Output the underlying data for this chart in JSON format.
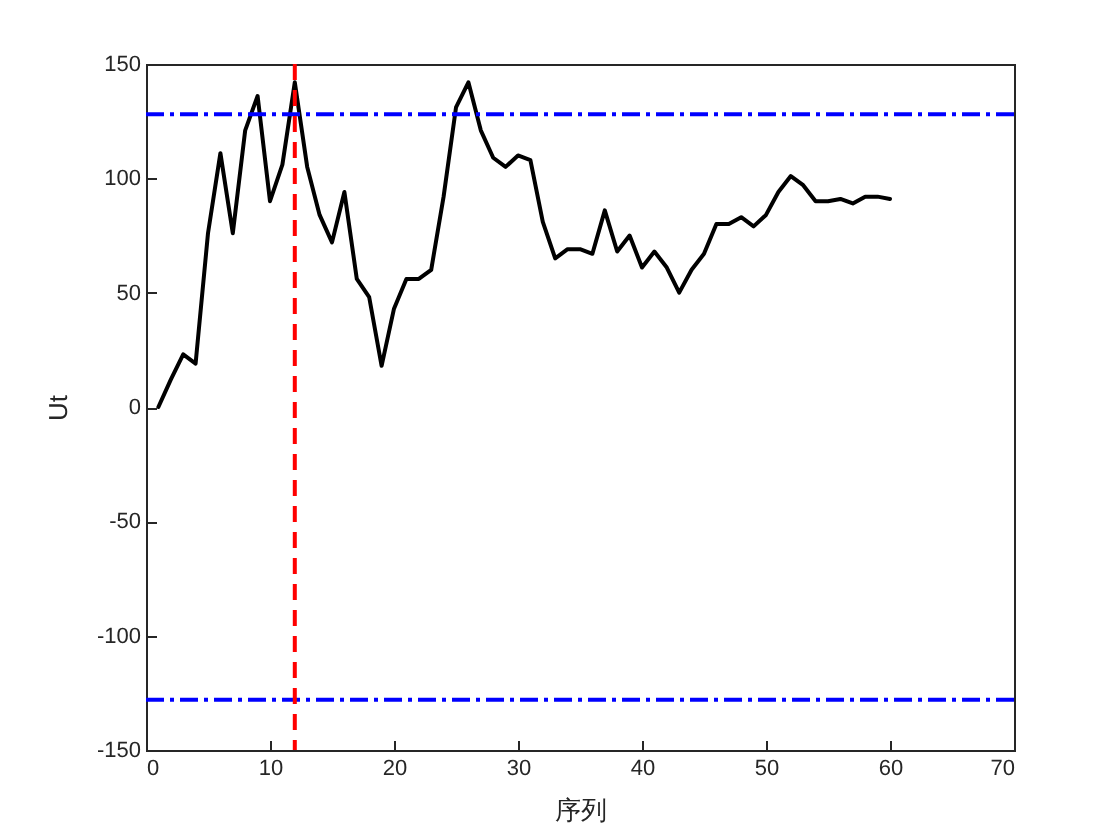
{
  "chart_data": {
    "type": "line",
    "xlabel": "序列",
    "ylabel": "Ut",
    "x": [
      1,
      2,
      3,
      4,
      5,
      6,
      7,
      8,
      9,
      10,
      11,
      12,
      13,
      14,
      15,
      16,
      17,
      18,
      19,
      20,
      21,
      22,
      23,
      24,
      25,
      26,
      27,
      28,
      29,
      30,
      31,
      32,
      33,
      34,
      35,
      36,
      37,
      38,
      39,
      40,
      41,
      42,
      43,
      44,
      45,
      46,
      47,
      48,
      49,
      50,
      51,
      52,
      53,
      54,
      55,
      56,
      57,
      58,
      59,
      60
    ],
    "series": [
      {
        "color": "#000000",
        "values": [
          0,
          12,
          23,
          19,
          76,
          111,
          76,
          121,
          136,
          90,
          106,
          142,
          105,
          84,
          72,
          94,
          56,
          48,
          18,
          43,
          56,
          56,
          60,
          92,
          131,
          142,
          121,
          109,
          105,
          110,
          108,
          81,
          65,
          69,
          69,
          67,
          86,
          68,
          75,
          61,
          68,
          61,
          50,
          60,
          67,
          80,
          80,
          83,
          79,
          84,
          94,
          101,
          97,
          90,
          90,
          91,
          89,
          92,
          92,
          91
        ]
      }
    ],
    "xlim": [
      0,
      70
    ],
    "xticks": [
      0,
      10,
      20,
      30,
      40,
      50,
      60,
      70
    ],
    "ylim": [
      -150,
      150
    ],
    "yticks": [
      -150,
      -100,
      -50,
      0,
      50,
      100,
      150
    ],
    "grid": false,
    "marker": "none",
    "line_style": "solid",
    "ref_lines": [
      {
        "axis": "y",
        "value": 128,
        "color": "#0000ff",
        "line_style": "dashdot"
      },
      {
        "axis": "y",
        "value": -128,
        "color": "#0000ff",
        "line_style": "dashdot"
      },
      {
        "axis": "x",
        "value": 12,
        "color": "#ff0000",
        "line_style": "dashed"
      }
    ]
  }
}
